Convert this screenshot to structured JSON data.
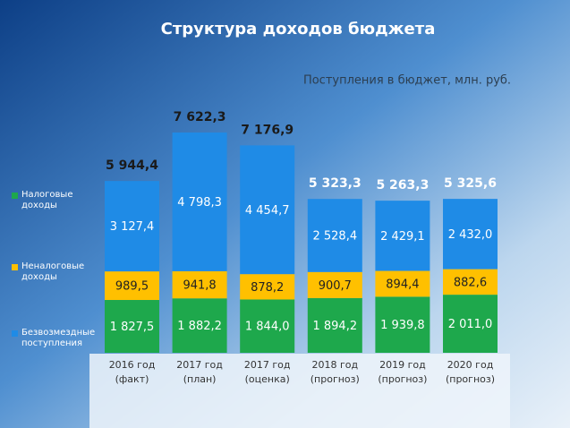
{
  "chart_data": {
    "type": "stacked-bar",
    "title": "Структура доходов бюджета",
    "subtitle": "Поступления в бюджет, млн. руб.",
    "categories": [
      [
        "2016 год",
        "(факт)"
      ],
      [
        "2017 год",
        "(план)"
      ],
      [
        "2017 год",
        "(оценка)"
      ],
      [
        "2018 год",
        "(прогноз)"
      ],
      [
        "2019 год",
        "(прогноз)"
      ],
      [
        "2020 год",
        "(прогноз)"
      ]
    ],
    "series": [
      {
        "name": "Налоговые доходы",
        "color": "#1ea84c",
        "values": [
          1827.5,
          1882.2,
          1844.0,
          1894.2,
          1939.8,
          2011.0
        ],
        "value_labels": [
          "1 827,5",
          "1 882,2",
          "1 844,0",
          "1 894,2",
          "1 939,8",
          "2 011,0"
        ]
      },
      {
        "name": "Неналоговые доходы",
        "color": "#ffc000",
        "values": [
          989.5,
          941.8,
          878.2,
          900.7,
          894.4,
          882.6
        ],
        "value_labels": [
          "989,5",
          "941,8",
          "878,2",
          "900,7",
          "894,4",
          "882,6"
        ]
      },
      {
        "name": "Безвозмездные поступления",
        "color": "#1f8be6",
        "values": [
          3127.4,
          4798.3,
          4454.7,
          2528.4,
          2429.1,
          2432.0
        ],
        "value_labels": [
          "3 127,4",
          "4 798,3",
          "4 454,7",
          "2 528,4",
          "2 429,1",
          "2 432,0"
        ]
      }
    ],
    "totals": [
      5944.4,
      7622.3,
      7176.9,
      5323.3,
      5263.3,
      5325.6
    ],
    "total_labels": [
      "5 944,4",
      "7 622,3",
      "7 176,9",
      "5 323,3",
      "5 263,3",
      "5 325,6"
    ]
  }
}
